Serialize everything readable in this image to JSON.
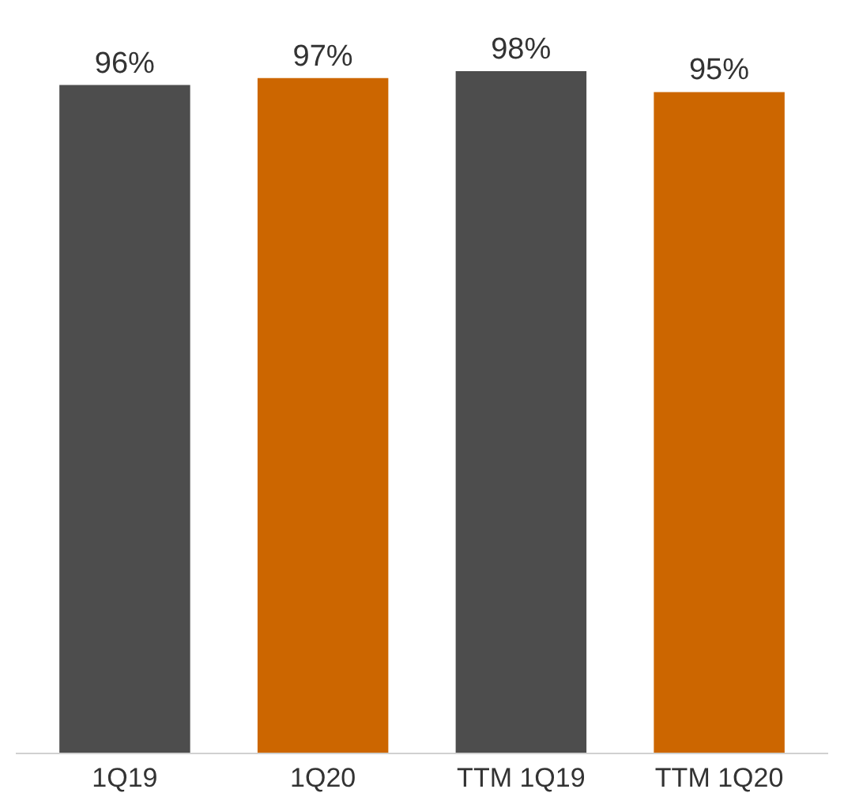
{
  "chart_data": {
    "type": "bar",
    "categories": [
      "1Q19",
      "1Q20",
      "TTM 1Q19",
      "TTM 1Q20"
    ],
    "values": [
      96,
      97,
      98,
      95
    ],
    "colors": [
      "#4d4d4d",
      "#cc6600",
      "#4d4d4d",
      "#cc6600"
    ],
    "value_labels": [
      "96%",
      "97%",
      "98%",
      "95%"
    ]
  }
}
